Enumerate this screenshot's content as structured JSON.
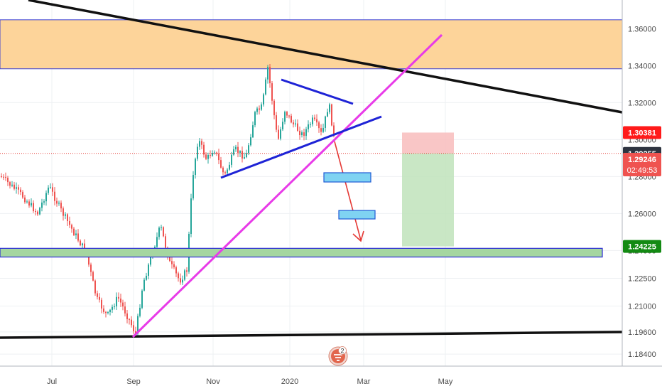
{
  "chart_data": {
    "type": "candlestick",
    "ylim": [
      1.1775,
      1.3755
    ],
    "y_ticks": [
      "1.36000",
      "1.34000",
      "1.32000",
      "1.30000",
      "1.28000",
      "1.26000",
      "1.24000",
      "1.22500",
      "1.21000",
      "1.19600",
      "1.18400"
    ],
    "x_ticks": [
      "Jul",
      "Sep",
      "Nov",
      "2020",
      "Mar",
      "May"
    ],
    "price_tags": {
      "stop": {
        "text": "1.30381",
        "value": 1.30381,
        "color": "#ff1a1a"
      },
      "last": {
        "text": "1.29255",
        "value": 1.29255,
        "color": "#2e3440"
      },
      "close": {
        "text": "1.29246",
        "value": 1.29246,
        "color": "#ef5350"
      },
      "countdown": {
        "text": "02:49:53",
        "color": "#ef5350"
      },
      "target": {
        "text": "1.24225",
        "value": 1.24225,
        "color": "#138a13"
      }
    },
    "zones": {
      "resistance": {
        "from": 1.3383,
        "to": 1.3648,
        "fill": "#fdd49a",
        "stroke": "#3b3fd1"
      },
      "support": {
        "from": 1.2365,
        "to": 1.2412,
        "fill": "#a5d6a0",
        "stroke": "#2a2ad6"
      }
    },
    "risk_reward": {
      "entry": 1.29255,
      "stop": 1.30381,
      "target": 1.24225
    },
    "icon": "tradingview-logo-icon",
    "badge": "2",
    "colors": {
      "up": "#26a69a",
      "down": "#ef5350",
      "trend": "#111111",
      "uptrend": "#e83be8",
      "triangle": "#1e23d6",
      "arrow": "#e53935",
      "target_box": "#7fd3f2"
    }
  }
}
